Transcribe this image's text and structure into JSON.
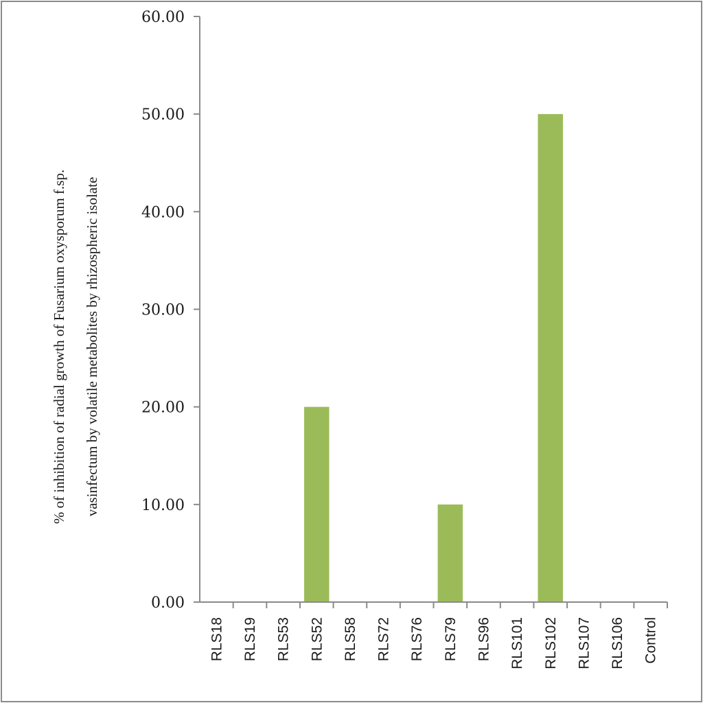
{
  "chart_data": {
    "type": "bar",
    "title": "",
    "xlabel": "",
    "ylabel_line1": "% of inhibition of radial growth of Fusarium oxysporum f.sp.",
    "ylabel_line2": "vasinfectum by volatile metabolites by rhizospheric isolate",
    "ylim": [
      0,
      60
    ],
    "yticks": [
      "0.00",
      "10.00",
      "20.00",
      "30.00",
      "40.00",
      "50.00",
      "60.00"
    ],
    "grid": false,
    "legend": "none",
    "bar_color": "#9bbb59",
    "categories": [
      "RLS18",
      "RLS19",
      "RLS53",
      "RLS52",
      "RLS58",
      "RLS72",
      "RLS76",
      "RLS79",
      "RLS96",
      "RLS101",
      "RLS102",
      "RLS107",
      "RLS106",
      "Control"
    ],
    "values": [
      0,
      0,
      0,
      20,
      0,
      0,
      0,
      10,
      0,
      0,
      50,
      0,
      0,
      0
    ]
  }
}
